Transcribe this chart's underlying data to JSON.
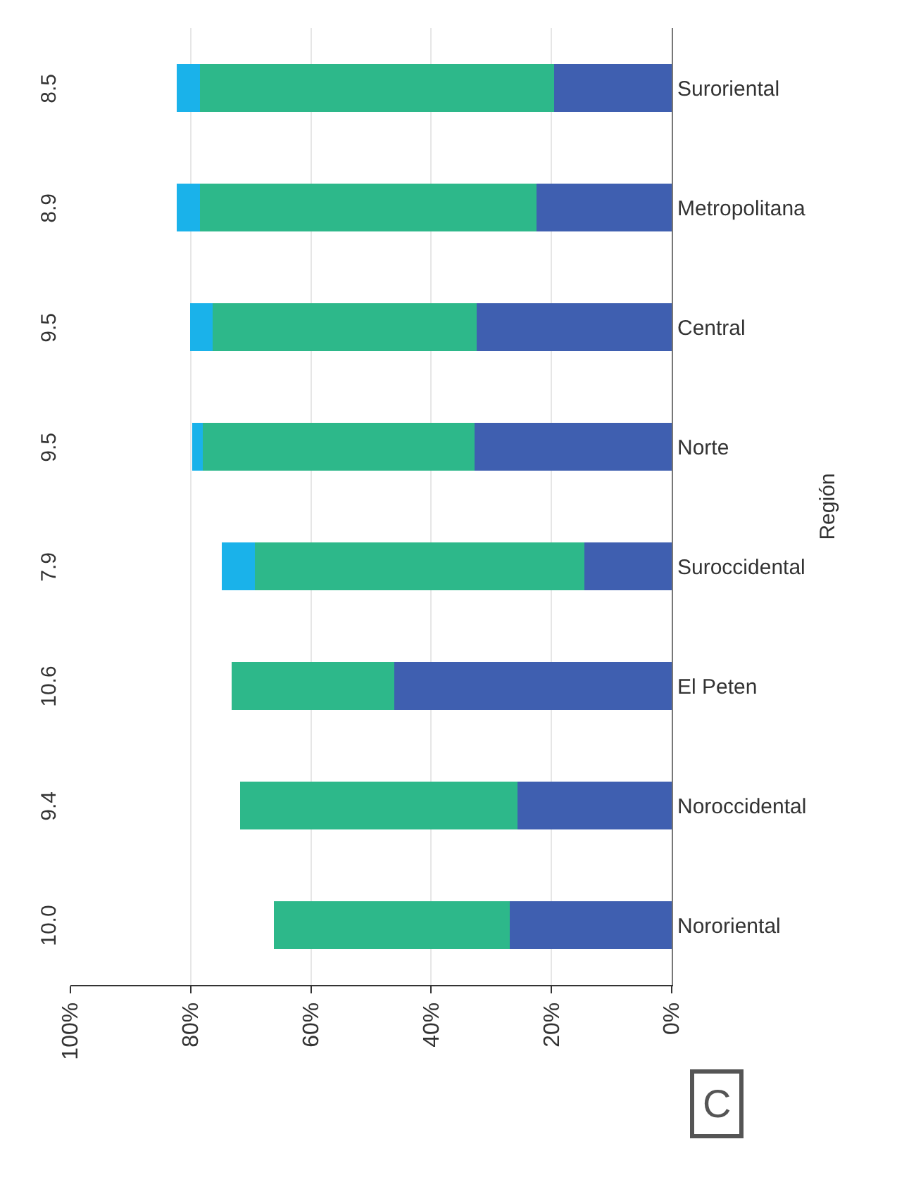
{
  "chart_data": {
    "type": "bar",
    "orientation": "horizontal",
    "stacked": true,
    "categories": [
      "Suroriental",
      "Metropolitana",
      "Central",
      "Norte",
      "Suroccidental",
      "El Peten",
      "Noroccidental",
      "Nororiental"
    ],
    "series": [
      {
        "color": "#3f5fb0",
        "values": [
          19.5,
          22.5,
          32.4,
          32.8,
          14.5,
          46.1,
          25.7,
          26.9
        ]
      },
      {
        "color": "#2db88a",
        "values": [
          58.9,
          55.9,
          44.0,
          45.2,
          54.8,
          27.1,
          46.1,
          39.3
        ]
      },
      {
        "color": "#1ab2ea",
        "values": [
          3.9,
          3.9,
          3.7,
          1.8,
          5.5,
          null,
          null,
          null
        ]
      }
    ],
    "xlim": [
      100,
      0
    ],
    "xticks": [
      {
        "value": 100,
        "label": "100%"
      },
      {
        "value": 80,
        "label": "80%"
      },
      {
        "value": 60,
        "label": "60%"
      },
      {
        "value": 40,
        "label": "40%"
      },
      {
        "value": 20,
        "label": "20%"
      },
      {
        "value": 0,
        "label": "0%"
      }
    ],
    "ylabel": "Región",
    "grid": "x",
    "annotations": [
      "8.5",
      "8.9",
      "9.5",
      "9.5",
      "7.9",
      "10.6",
      "9.4",
      "10.0",
      "C"
    ]
  }
}
